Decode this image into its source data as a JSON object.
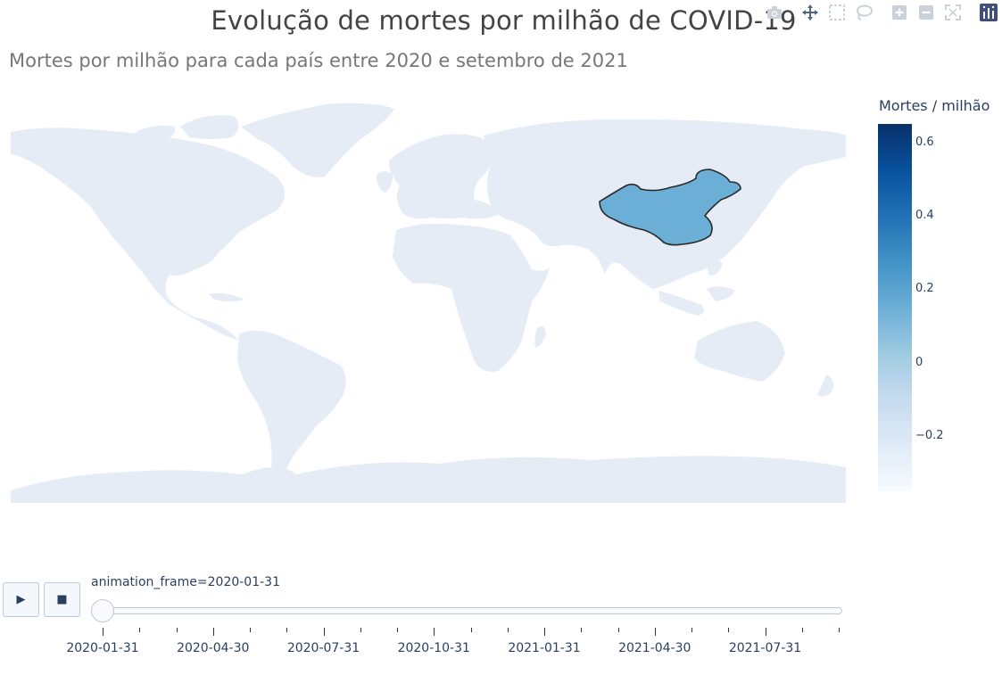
{
  "page": {
    "title": "Evolução de mortes por milhão de COVID-19",
    "subtitle": "Mortes por milhão para cada país entre 2020 e setembro de 2021"
  },
  "modebar": {
    "buttons": [
      {
        "icon": "camera-icon"
      },
      {
        "icon": "pan-icon"
      },
      {
        "icon": "box-select-icon"
      },
      {
        "icon": "lasso-icon"
      },
      {
        "icon": "zoom-in-icon"
      },
      {
        "icon": "zoom-out-icon"
      },
      {
        "icon": "reset-view-icon"
      },
      {
        "icon": "plotly-logo-icon"
      }
    ]
  },
  "chart_data": {
    "type": "choropleth",
    "title": "Evolução de mortes por milhão de COVID-19",
    "subtitle": "Mortes por milhão para cada país entre 2020 e setembro de 2021",
    "projection": "natural earth",
    "base_land_color": "#e5ecf6",
    "highlighted_regions": [
      {
        "name": "China",
        "color": "#6baed6"
      }
    ],
    "colorbar": {
      "title": "Mortes / milhão",
      "range": [
        -0.35,
        0.65
      ],
      "ticks": [
        0.6,
        0.4,
        0.2,
        0,
        -0.2
      ],
      "tick_labels": [
        "0.6",
        "0.4",
        "0.2",
        "0",
        "−0.2"
      ],
      "colorscale": [
        "#f7fbff",
        "#deebf7",
        "#c6dbef",
        "#9ecae1",
        "#6baed6",
        "#4292c6",
        "#2171b5",
        "#08519c",
        "#08306b"
      ]
    },
    "animation": {
      "label_prefix": "animation_frame=",
      "current_frame": "2020-01-31",
      "current_index": 0,
      "frame_count": 21,
      "tick_labels": [
        "2020-01-31",
        "2020-04-30",
        "2020-07-31",
        "2020-10-31",
        "2021-01-31",
        "2021-04-30",
        "2021-07-31"
      ],
      "labeled_every": 3
    }
  },
  "controls": {
    "play_glyph": "▶",
    "stop_glyph": "■"
  }
}
